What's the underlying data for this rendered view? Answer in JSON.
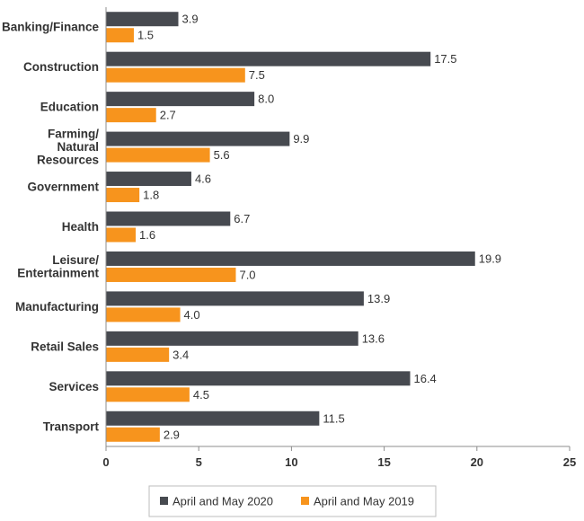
{
  "chart_data": {
    "type": "bar",
    "orientation": "horizontal",
    "categories": [
      "Banking/Finance",
      "Construction",
      "Education",
      "Farming/\nNatural\nResources",
      "Government",
      "Health",
      "Leisure/\nEntertainment",
      "Manufacturing",
      "Retail Sales",
      "Services",
      "Transport"
    ],
    "series": [
      {
        "name": "April and May 2020",
        "color": "#474a50",
        "values": [
          3.9,
          17.5,
          8.0,
          9.9,
          4.6,
          6.7,
          19.9,
          13.9,
          13.6,
          16.4,
          11.5
        ]
      },
      {
        "name": "April and May 2019",
        "color": "#f7941d",
        "values": [
          1.5,
          7.5,
          2.7,
          5.6,
          1.8,
          1.6,
          7.0,
          4.0,
          3.4,
          4.5,
          2.9
        ]
      }
    ],
    "xlim": [
      0,
      25
    ],
    "xticks": [
      0,
      5,
      10,
      15,
      20,
      25
    ],
    "value_decimals": 1,
    "grid": false,
    "legend_position": "bottom-center",
    "title": "",
    "xlabel": "",
    "ylabel": ""
  }
}
